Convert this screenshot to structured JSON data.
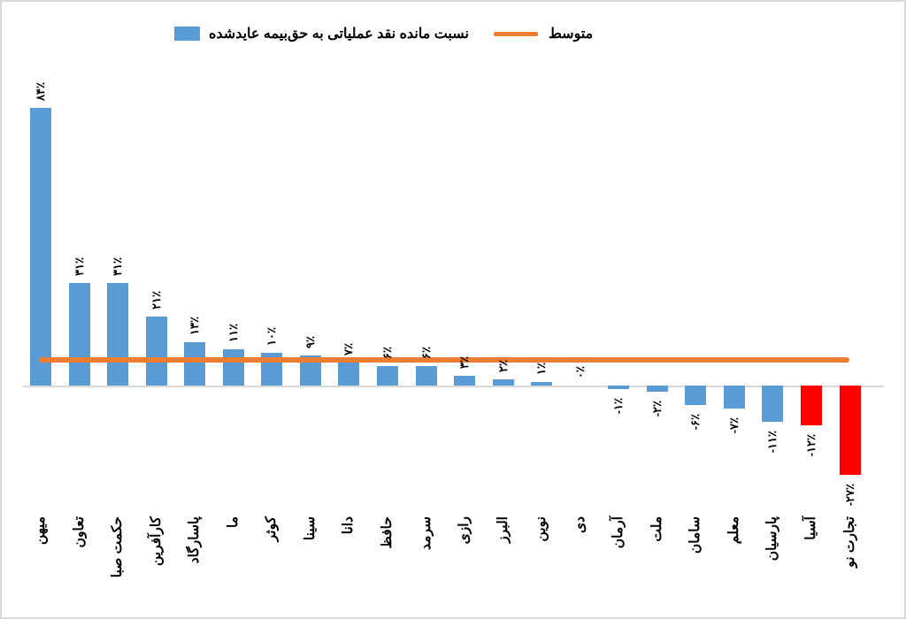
{
  "legend": {
    "series_label": "نسبت مانده نقد عملیاتی به حق‌بیمه عایدشده",
    "average_label": "متوسط",
    "series_color": "#5B9BD5",
    "average_color": "#ED7D31"
  },
  "colors": {
    "bar_blue": "#5B9BD5",
    "bar_red": "#FF0000",
    "average_line": "#ED7D31",
    "axis_line": "#D9D9D9",
    "background": "#FFFFFF",
    "frame_border": "#D9D9D9",
    "label_text": "#000000"
  },
  "chart_data": {
    "type": "bar",
    "title": "",
    "xlabel": "",
    "ylabel": "",
    "grid": false,
    "legend_position": "top",
    "ylim": [
      -30,
      90
    ],
    "categories": [
      "میهن",
      "تعاون",
      "حکمت صبا",
      "کارآفرین",
      "پاسارگاد",
      "ما",
      "کوثر",
      "سینا",
      "دانا",
      "حافظ",
      "سرمد",
      "رازی",
      "البرز",
      "نوین",
      "دی",
      "آرمان",
      "ملت",
      "سامان",
      "معلم",
      "پارسیان",
      "آسیا",
      "تجارت نو"
    ],
    "series": [
      {
        "name": "نسبت مانده نقد عملیاتی به حق‌بیمه عایدشده",
        "values": [
          84,
          31,
          31,
          21,
          13,
          11,
          10,
          9,
          7,
          6,
          6,
          3,
          2,
          1,
          0,
          -1,
          -2,
          -6,
          -7,
          -11,
          -12,
          -27
        ]
      }
    ],
    "value_labels": [
      "۸۴٪",
      "۳۱٪",
      "۳۱٪",
      "۲۱٪",
      "۱۳٪",
      "۱۱٪",
      "۱۰٪",
      "۹٪",
      "۷٪",
      "۶٪",
      "۶٪",
      "۳٪",
      "۲٪",
      "۱٪",
      "۰٪",
      "-۱٪",
      "-۲٪",
      "-۶٪",
      "-۷٪",
      "-۱۱٪",
      "-۱۲٪",
      "-۲۷٪"
    ],
    "bar_colors": [
      "#5B9BD5",
      "#5B9BD5",
      "#5B9BD5",
      "#5B9BD5",
      "#5B9BD5",
      "#5B9BD5",
      "#5B9BD5",
      "#5B9BD5",
      "#5B9BD5",
      "#5B9BD5",
      "#5B9BD5",
      "#5B9BD5",
      "#5B9BD5",
      "#5B9BD5",
      "#5B9BD5",
      "#5B9BD5",
      "#5B9BD5",
      "#5B9BD5",
      "#5B9BD5",
      "#5B9BD5",
      "#FF0000",
      "#FF0000"
    ],
    "average_line": {
      "label": "متوسط",
      "value_estimate": 7.7
    }
  }
}
